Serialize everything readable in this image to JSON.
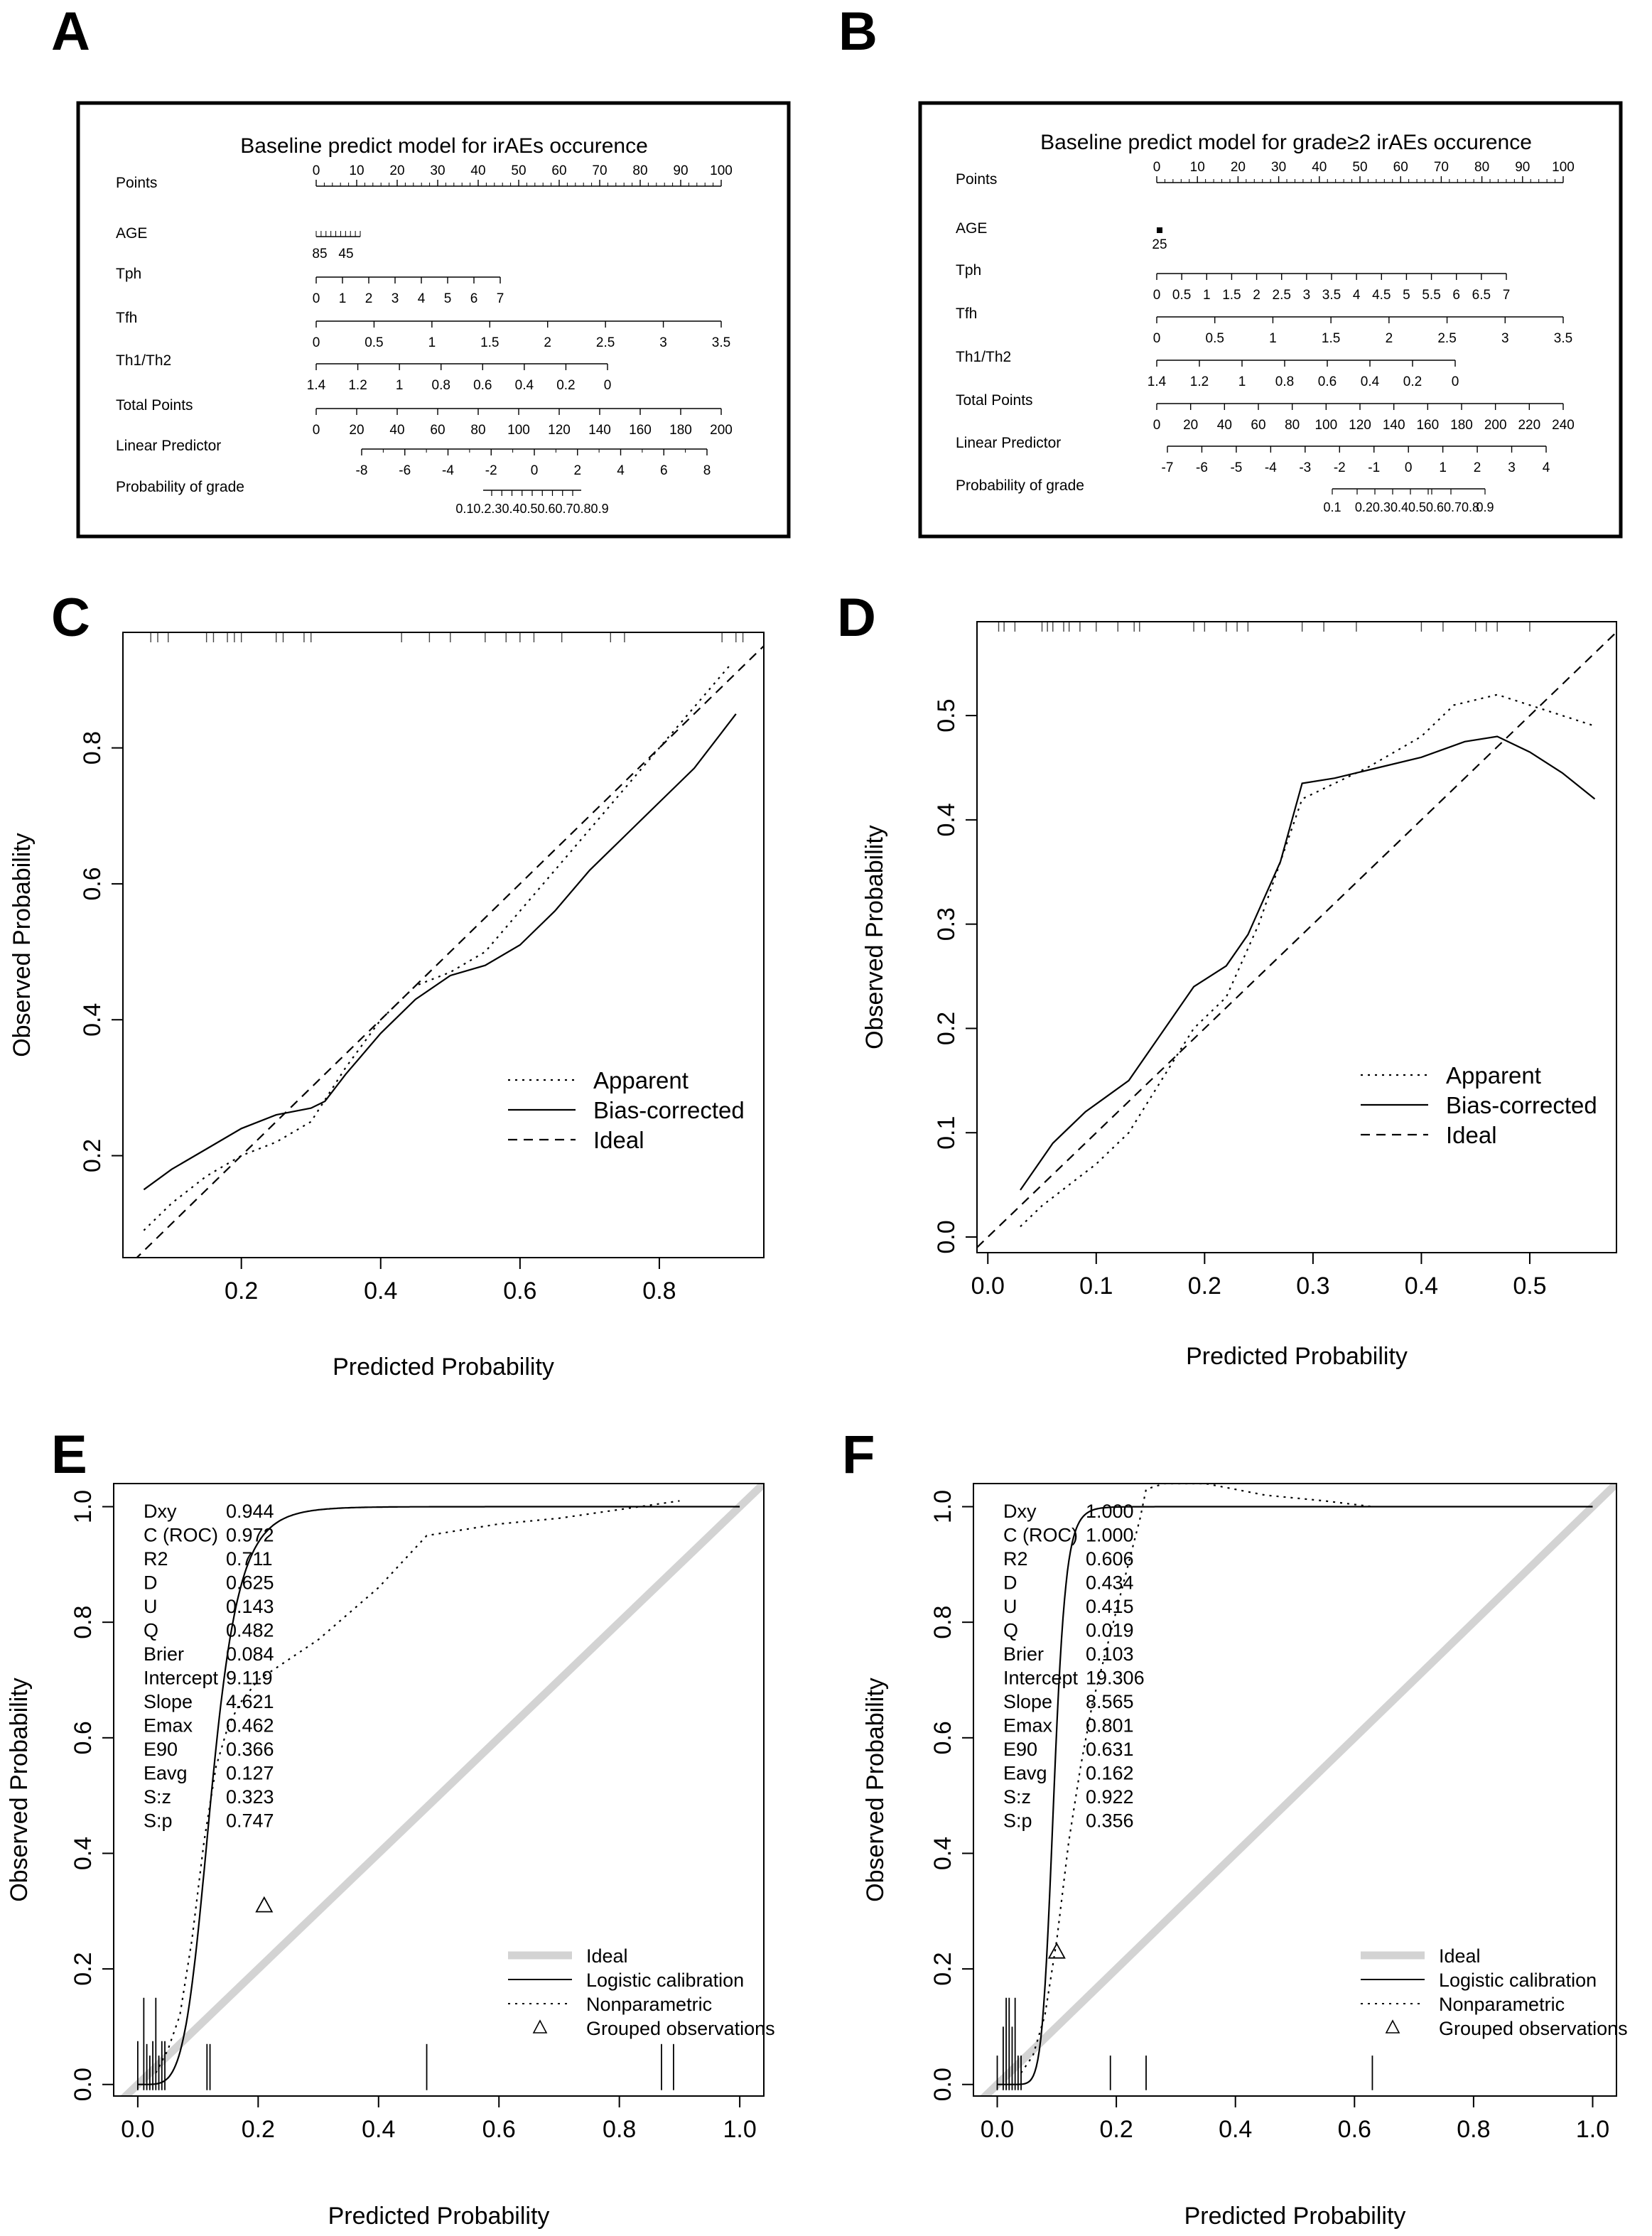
{
  "panels": [
    {
      "letter": "A"
    },
    {
      "letter": "B"
    },
    {
      "letter": "C"
    },
    {
      "letter": "D"
    },
    {
      "letter": "E"
    },
    {
      "letter": "F"
    }
  ],
  "chart_data": [
    {
      "panel": "A",
      "type": "nomogram",
      "title": "Baseline predict model for irAEs occurence",
      "rows": [
        {
          "label": "Points",
          "ticks": [
            "0",
            "10",
            "20",
            "30",
            "40",
            "50",
            "60",
            "70",
            "80",
            "90",
            "100"
          ],
          "minor": 4
        },
        {
          "label": "AGE",
          "tick_labels": [
            "85",
            "45"
          ],
          "hash_marks": 9
        },
        {
          "label": "Tph",
          "ticks": [
            "0",
            "1",
            "2",
            "3",
            "4",
            "5",
            "6",
            "7"
          ]
        },
        {
          "label": "Tfh",
          "ticks": [
            "0",
            "0.5",
            "1",
            "1.5",
            "2",
            "2.5",
            "3",
            "3.5"
          ]
        },
        {
          "label": "Th1/Th2",
          "ticks": [
            "1.4",
            "1.2",
            "1",
            "0.8",
            "0.6",
            "0.4",
            "0.2",
            "0"
          ]
        },
        {
          "label": "Total Points",
          "ticks": [
            "0",
            "20",
            "40",
            "60",
            "80",
            "100",
            "120",
            "140",
            "160",
            "180",
            "200"
          ]
        },
        {
          "label": "Linear Predictor",
          "ticks": [
            "-8",
            "-6",
            "-4",
            "-2",
            "0",
            "2",
            "4",
            "6",
            "8"
          ],
          "minor": 1
        },
        {
          "label": "Probability of grade",
          "ticks_text": "0.10.2.30.40.50.60.70.80.9"
        }
      ]
    },
    {
      "panel": "B",
      "type": "nomogram",
      "title": "Baseline predict model for grade≥2 irAEs occurence",
      "rows": [
        {
          "label": "Points",
          "ticks": [
            "0",
            "10",
            "20",
            "30",
            "40",
            "50",
            "60",
            "70",
            "80",
            "90",
            "100"
          ],
          "minor": 4
        },
        {
          "label": "AGE",
          "tick_labels": [
            "25"
          ]
        },
        {
          "label": "Tph",
          "ticks": [
            "0",
            "0.5",
            "1",
            "1.5",
            "2",
            "2.5",
            "3",
            "3.5",
            "4",
            "4.5",
            "5",
            "5.5",
            "6",
            "6.5",
            "7"
          ]
        },
        {
          "label": "Tfh",
          "ticks": [
            "0",
            "0.5",
            "1",
            "1.5",
            "2",
            "2.5",
            "3",
            "3.5"
          ]
        },
        {
          "label": "Th1/Th2",
          "ticks": [
            "1.4",
            "1.2",
            "1",
            "0.8",
            "0.6",
            "0.4",
            "0.2",
            "0"
          ]
        },
        {
          "label": "Total Points",
          "ticks": [
            "0",
            "20",
            "40",
            "60",
            "80",
            "100",
            "120",
            "140",
            "160",
            "180",
            "200",
            "220",
            "240"
          ]
        },
        {
          "label": "Linear Predictor",
          "ticks": [
            "-7",
            "-6",
            "-5",
            "-4",
            "-3",
            "-2",
            "-1",
            "0",
            "1",
            "2",
            "3",
            "4"
          ]
        },
        {
          "label": "Probability of grade",
          "ticks_text": [
            "0.1",
            "0.20.30.40.50.60.70.8",
            "0.9"
          ]
        }
      ]
    },
    {
      "panel": "C",
      "type": "line",
      "xlabel": "Predicted Probability",
      "ylabel": "Observed Probability",
      "xlim": [
        0.03,
        0.95
      ],
      "ylim": [
        0.05,
        0.97
      ],
      "xticks": [
        0.2,
        0.4,
        0.6,
        0.8
      ],
      "yticks": [
        0.2,
        0.4,
        0.6,
        0.8
      ],
      "rug": [
        0.07,
        0.08,
        0.095,
        0.15,
        0.16,
        0.18,
        0.19,
        0.2,
        0.25,
        0.26,
        0.29,
        0.3,
        0.43,
        0.47,
        0.5,
        0.55,
        0.58,
        0.6,
        0.62,
        0.66,
        0.73,
        0.75,
        0.89,
        0.91,
        0.92
      ],
      "series": [
        {
          "name": "Apparent",
          "dash": "dotted",
          "x": [
            0.06,
            0.1,
            0.15,
            0.2,
            0.25,
            0.3,
            0.35,
            0.4,
            0.45,
            0.5,
            0.55,
            0.6,
            0.65,
            0.7,
            0.75,
            0.8,
            0.85,
            0.9
          ],
          "y": [
            0.09,
            0.13,
            0.17,
            0.2,
            0.22,
            0.25,
            0.33,
            0.4,
            0.45,
            0.47,
            0.5,
            0.56,
            0.62,
            0.68,
            0.74,
            0.8,
            0.86,
            0.92
          ]
        },
        {
          "name": "Bias-corrected",
          "dash": "solid",
          "x": [
            0.06,
            0.1,
            0.15,
            0.2,
            0.25,
            0.3,
            0.32,
            0.35,
            0.4,
            0.45,
            0.5,
            0.55,
            0.6,
            0.65,
            0.7,
            0.75,
            0.8,
            0.85,
            0.91
          ],
          "y": [
            0.15,
            0.18,
            0.21,
            0.24,
            0.26,
            0.27,
            0.28,
            0.32,
            0.38,
            0.43,
            0.465,
            0.48,
            0.51,
            0.56,
            0.62,
            0.67,
            0.72,
            0.77,
            0.85
          ]
        },
        {
          "name": "Ideal",
          "dash": "dashed",
          "x": [
            0.03,
            0.95
          ],
          "y": [
            0.03,
            0.95
          ]
        }
      ],
      "legend": {
        "position": "bottom-right"
      }
    },
    {
      "panel": "D",
      "type": "line",
      "xlabel": "Predicted Probability",
      "ylabel": "Observed Probability",
      "xlim": [
        -0.01,
        0.58
      ],
      "ylim": [
        -0.015,
        0.59
      ],
      "xticks": [
        0.0,
        0.1,
        0.2,
        0.3,
        0.4,
        0.5
      ],
      "yticks": [
        0.0,
        0.1,
        0.2,
        0.3,
        0.4,
        0.5
      ],
      "rug": [
        0.01,
        0.015,
        0.025,
        0.05,
        0.055,
        0.06,
        0.07,
        0.075,
        0.085,
        0.1,
        0.12,
        0.135,
        0.14,
        0.19,
        0.2,
        0.22,
        0.23,
        0.24,
        0.29,
        0.31,
        0.34,
        0.4,
        0.42,
        0.45,
        0.46,
        0.47,
        0.5
      ],
      "series": [
        {
          "name": "Apparent",
          "dash": "dotted",
          "x": [
            0.03,
            0.05,
            0.1,
            0.13,
            0.16,
            0.19,
            0.22,
            0.25,
            0.29,
            0.35,
            0.4,
            0.43,
            0.47,
            0.5,
            0.53,
            0.56
          ],
          "y": [
            0.01,
            0.03,
            0.07,
            0.1,
            0.15,
            0.2,
            0.23,
            0.3,
            0.42,
            0.45,
            0.48,
            0.51,
            0.52,
            0.51,
            0.5,
            0.49
          ]
        },
        {
          "name": "Bias-corrected",
          "dash": "solid",
          "x": [
            0.03,
            0.06,
            0.09,
            0.11,
            0.13,
            0.15,
            0.19,
            0.22,
            0.24,
            0.27,
            0.29,
            0.32,
            0.36,
            0.4,
            0.44,
            0.47,
            0.5,
            0.53,
            0.56
          ],
          "y": [
            0.045,
            0.09,
            0.12,
            0.135,
            0.15,
            0.18,
            0.24,
            0.26,
            0.29,
            0.36,
            0.435,
            0.44,
            0.45,
            0.46,
            0.475,
            0.48,
            0.465,
            0.445,
            0.42
          ]
        },
        {
          "name": "Ideal",
          "dash": "dashed",
          "x": [
            -0.01,
            0.58
          ],
          "y": [
            -0.01,
            0.58
          ]
        }
      ],
      "legend": {
        "position": "bottom-right"
      }
    },
    {
      "panel": "E",
      "type": "line",
      "xlabel": "Predicted Probability",
      "ylabel": "Observed Probability",
      "xlim": [
        -0.04,
        1.04
      ],
      "ylim": [
        -0.02,
        1.04
      ],
      "xticks": [
        0.0,
        0.2,
        0.4,
        0.6,
        0.8,
        1.0
      ],
      "yticks": [
        0.0,
        0.2,
        0.4,
        0.6,
        0.8,
        1.0
      ],
      "stats": [
        [
          "Dxy",
          "0.944"
        ],
        [
          "C (ROC)",
          "0.972"
        ],
        [
          "R2",
          "0.711"
        ],
        [
          "D",
          "0.625"
        ],
        [
          "U",
          "0.143"
        ],
        [
          "Q",
          "0.482"
        ],
        [
          "Brier",
          "0.084"
        ],
        [
          "Intercept",
          "9.119"
        ],
        [
          "Slope",
          "4.621"
        ],
        [
          "Emax",
          "0.462"
        ],
        [
          "E90",
          "0.366"
        ],
        [
          "Eavg",
          "0.127"
        ],
        [
          "S:z",
          "0.323"
        ],
        [
          "S:p",
          "0.747"
        ]
      ],
      "series": [
        {
          "name": "Ideal",
          "style": "thick-gray",
          "x": [
            -0.04,
            1.04
          ],
          "y": [
            -0.04,
            1.04
          ]
        },
        {
          "name": "Logistic calibration",
          "dash": "solid",
          "curve": {
            "intercept": 9.119,
            "slope": 4.621
          }
        },
        {
          "name": "Nonparametric",
          "dash": "dotted",
          "x": [
            0.03,
            0.05,
            0.07,
            0.09,
            0.11,
            0.13,
            0.15,
            0.17,
            0.2,
            0.3,
            0.4,
            0.48,
            0.6,
            0.7,
            0.8,
            0.9
          ],
          "y": [
            0.02,
            0.06,
            0.12,
            0.25,
            0.42,
            0.55,
            0.62,
            0.66,
            0.7,
            0.77,
            0.86,
            0.95,
            0.97,
            0.98,
            0.995,
            1.01
          ]
        },
        {
          "name": "Grouped observations",
          "marker": "triangle",
          "x": [
            0.21
          ],
          "y": [
            0.31
          ]
        }
      ],
      "spikes": [
        {
          "x": 0.0,
          "h": 0.075
        },
        {
          "x": 0.01,
          "h": 0.15
        },
        {
          "x": 0.015,
          "h": 0.07
        },
        {
          "x": 0.02,
          "h": 0.05
        },
        {
          "x": 0.025,
          "h": 0.075
        },
        {
          "x": 0.03,
          "h": 0.15
        },
        {
          "x": 0.035,
          "h": 0.05
        },
        {
          "x": 0.04,
          "h": 0.075
        },
        {
          "x": 0.045,
          "h": 0.075
        },
        {
          "x": 0.115,
          "h": 0.07
        },
        {
          "x": 0.12,
          "h": 0.07
        },
        {
          "x": 0.48,
          "h": 0.07
        },
        {
          "x": 0.87,
          "h": 0.07
        },
        {
          "x": 0.89,
          "h": 0.07
        }
      ],
      "legend": {
        "position": "bottom-right"
      }
    },
    {
      "panel": "F",
      "type": "line",
      "xlabel": "Predicted Probability",
      "ylabel": "Observed Probability",
      "xlim": [
        -0.04,
        1.04
      ],
      "ylim": [
        -0.02,
        1.04
      ],
      "xticks": [
        0.0,
        0.2,
        0.4,
        0.6,
        0.8,
        1.0
      ],
      "yticks": [
        0.0,
        0.2,
        0.4,
        0.6,
        0.8,
        1.0
      ],
      "stats": [
        [
          "Dxy",
          "1.000"
        ],
        [
          "C (ROC)",
          "1.000"
        ],
        [
          "R2",
          "0.606"
        ],
        [
          "D",
          "0.434"
        ],
        [
          "U",
          "0.415"
        ],
        [
          "Q",
          "0.019"
        ],
        [
          "Brier",
          "0.103"
        ],
        [
          "Intercept",
          "19.306"
        ],
        [
          "Slope",
          "8.565"
        ],
        [
          "Emax",
          "0.801"
        ],
        [
          "E90",
          "0.631"
        ],
        [
          "Eavg",
          "0.162"
        ],
        [
          "S:z",
          "0.922"
        ],
        [
          "S:p",
          "0.356"
        ]
      ],
      "series": [
        {
          "name": "Ideal",
          "style": "thick-gray",
          "x": [
            -0.04,
            1.04
          ],
          "y": [
            -0.04,
            1.04
          ]
        },
        {
          "name": "Logistic calibration",
          "dash": "solid",
          "curve": {
            "intercept": 19.306,
            "slope": 8.565
          }
        },
        {
          "name": "Nonparametric",
          "dash": "dotted",
          "x": [
            0.04,
            0.06,
            0.08,
            0.1,
            0.12,
            0.14,
            0.16,
            0.18,
            0.2,
            0.22,
            0.24,
            0.25,
            0.28,
            0.35,
            0.45,
            0.55,
            0.63
          ],
          "y": [
            0.02,
            0.05,
            0.12,
            0.25,
            0.42,
            0.55,
            0.66,
            0.74,
            0.82,
            0.9,
            0.98,
            1.03,
            1.04,
            1.04,
            1.02,
            1.01,
            1.0
          ]
        },
        {
          "name": "Grouped observations",
          "marker": "triangle",
          "x": [
            0.1
          ],
          "y": [
            0.23
          ]
        }
      ],
      "spikes": [
        {
          "x": 0.0,
          "h": 0.05
        },
        {
          "x": 0.01,
          "h": 0.1
        },
        {
          "x": 0.015,
          "h": 0.15
        },
        {
          "x": 0.02,
          "h": 0.15
        },
        {
          "x": 0.025,
          "h": 0.1
        },
        {
          "x": 0.03,
          "h": 0.15
        },
        {
          "x": 0.035,
          "h": 0.05
        },
        {
          "x": 0.04,
          "h": 0.05
        },
        {
          "x": 0.19,
          "h": 0.05
        },
        {
          "x": 0.25,
          "h": 0.05
        },
        {
          "x": 0.63,
          "h": 0.05
        }
      ],
      "legend": {
        "position": "bottom-right"
      }
    }
  ]
}
